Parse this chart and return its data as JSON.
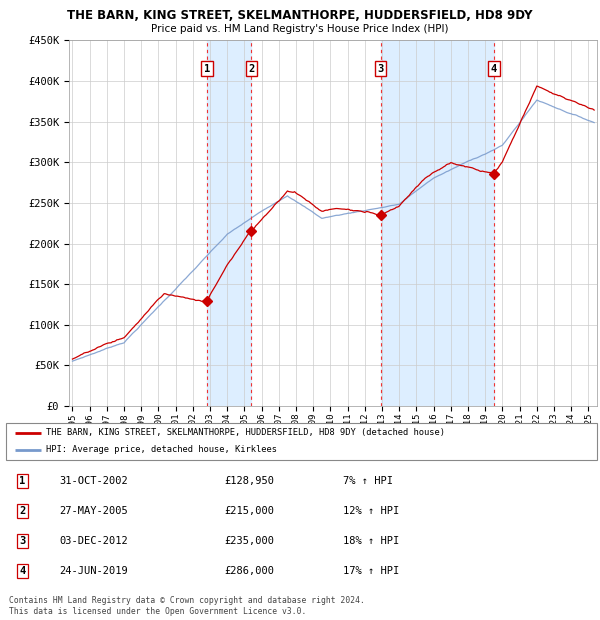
{
  "title": "THE BARN, KING STREET, SKELMANTHORPE, HUDDERSFIELD, HD8 9DY",
  "subtitle": "Price paid vs. HM Land Registry's House Price Index (HPI)",
  "ylim": [
    0,
    450000
  ],
  "yticks": [
    0,
    50000,
    100000,
    150000,
    200000,
    250000,
    300000,
    350000,
    400000,
    450000
  ],
  "ytick_labels": [
    "£0",
    "£50K",
    "£100K",
    "£150K",
    "£200K",
    "£250K",
    "£300K",
    "£350K",
    "£400K",
    "£450K"
  ],
  "xlim_start": 1994.8,
  "xlim_end": 2025.5,
  "sale_dates": [
    2002.833,
    2005.4,
    2012.917,
    2019.5
  ],
  "sale_prices": [
    128950,
    215000,
    235000,
    286000
  ],
  "sale_labels": [
    "1",
    "2",
    "3",
    "4"
  ],
  "transactions": [
    {
      "label": "1",
      "date": "31-OCT-2002",
      "price": "£128,950",
      "hpi": "7% ↑ HPI"
    },
    {
      "label": "2",
      "date": "27-MAY-2005",
      "price": "£215,000",
      "hpi": "12% ↑ HPI"
    },
    {
      "label": "3",
      "date": "03-DEC-2012",
      "price": "£235,000",
      "hpi": "18% ↑ HPI"
    },
    {
      "label": "4",
      "date": "24-JUN-2019",
      "price": "£286,000",
      "hpi": "17% ↑ HPI"
    }
  ],
  "legend_line1": "THE BARN, KING STREET, SKELMANTHORPE, HUDDERSFIELD, HD8 9DY (detached house)",
  "legend_line2": "HPI: Average price, detached house, Kirklees",
  "footer": "Contains HM Land Registry data © Crown copyright and database right 2024.\nThis data is licensed under the Open Government Licence v3.0.",
  "red_color": "#cc0000",
  "blue_color": "#7799cc",
  "bg_color": "#ddeeff",
  "grid_color": "#cccccc",
  "vline_color": "#ee3333"
}
